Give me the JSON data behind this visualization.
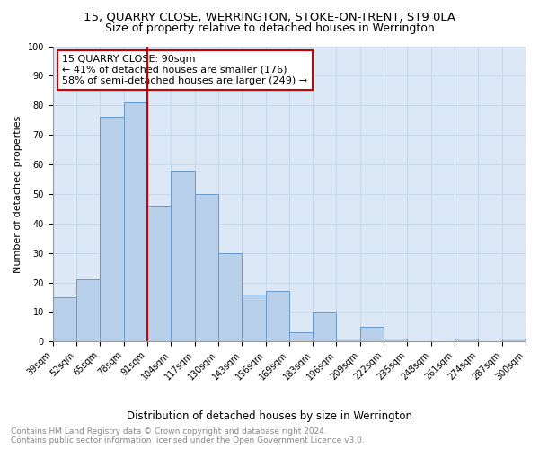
{
  "title": "15, QUARRY CLOSE, WERRINGTON, STOKE-ON-TRENT, ST9 0LA",
  "subtitle": "Size of property relative to detached houses in Werrington",
  "xlabel": "Distribution of detached houses by size in Werrington",
  "ylabel": "Number of detached properties",
  "bar_values": [
    15,
    21,
    76,
    81,
    46,
    58,
    50,
    30,
    16,
    17,
    3,
    10,
    1,
    5,
    1,
    0,
    0,
    1,
    0,
    1
  ],
  "categories": [
    "39sqm",
    "52sqm",
    "65sqm",
    "78sqm",
    "91sqm",
    "104sqm",
    "117sqm",
    "130sqm",
    "143sqm",
    "156sqm",
    "169sqm",
    "183sqm",
    "196sqm",
    "209sqm",
    "222sqm",
    "235sqm",
    "248sqm",
    "261sqm",
    "274sqm",
    "287sqm",
    "300sqm"
  ],
  "bar_color": "#b8d0ea",
  "bar_edge_color": "#6699cc",
  "highlight_line_color": "#cc0000",
  "annotation_text": "15 QUARRY CLOSE: 90sqm\n← 41% of detached houses are smaller (176)\n58% of semi-detached houses are larger (249) →",
  "annotation_box_color": "#ffffff",
  "annotation_box_edge": "#cc0000",
  "ylim": [
    0,
    100
  ],
  "yticks": [
    0,
    10,
    20,
    30,
    40,
    50,
    60,
    70,
    80,
    90,
    100
  ],
  "grid_color": "#c8d8e8",
  "bg_color": "#dce8f5",
  "footer_text": "Contains HM Land Registry data © Crown copyright and database right 2024.\nContains public sector information licensed under the Open Government Licence v3.0.",
  "title_fontsize": 9.5,
  "subtitle_fontsize": 9,
  "xlabel_fontsize": 8.5,
  "ylabel_fontsize": 8,
  "tick_fontsize": 7,
  "annotation_fontsize": 8,
  "footer_fontsize": 6.5
}
